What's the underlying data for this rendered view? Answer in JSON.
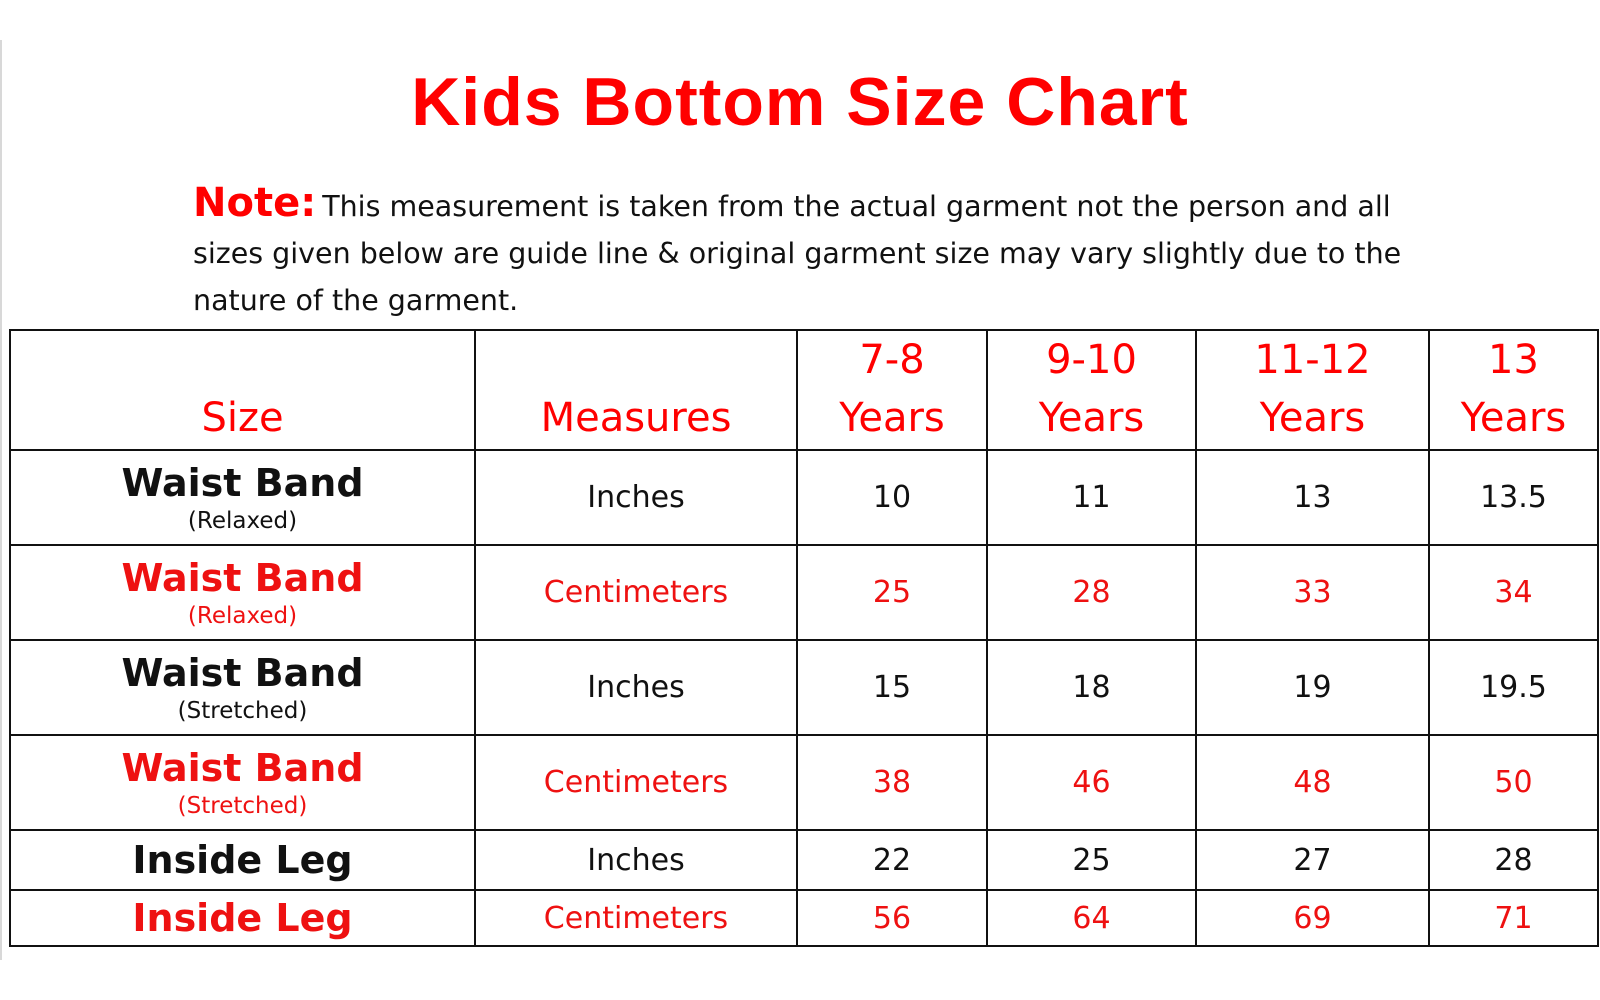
{
  "title": "Kids Bottom Size Chart",
  "note": {
    "label": "Note:",
    "text": "This measurement is taken from the actual garment not the person and all sizes given below are guide line & original garment size may vary slightly due to the nature of the garment."
  },
  "colors": {
    "accent_red": "#ff0000",
    "text_black": "#111111",
    "border": "#111111"
  },
  "table": {
    "headers": {
      "size": "Size",
      "measures": "Measures",
      "age_1_top": "7-8",
      "age_1_bottom": "Years",
      "age_2_top": "9-10",
      "age_2_bottom": "Years",
      "age_3_top": "11-12",
      "age_3_bottom": "Years",
      "age_4_top": "13",
      "age_4_bottom": "Years"
    },
    "rows": [
      {
        "name": "Waist Band",
        "sub": "(Relaxed)",
        "measure": "Inches",
        "values": [
          "10",
          "11",
          "13",
          "13.5"
        ]
      },
      {
        "name": "Waist Band",
        "sub": "(Relaxed)",
        "measure": "Centimeters",
        "values": [
          "25",
          "28",
          "33",
          "34"
        ]
      },
      {
        "name": "Waist Band",
        "sub": "(Stretched)",
        "measure": "Inches",
        "values": [
          "15",
          "18",
          "19",
          "19.5"
        ]
      },
      {
        "name": "Waist Band",
        "sub": "(Stretched)",
        "measure": "Centimeters",
        "values": [
          "38",
          "46",
          "48",
          "50"
        ]
      },
      {
        "name": "Inside Leg",
        "measure": "Inches",
        "values": [
          "22",
          "25",
          "27",
          "28"
        ]
      },
      {
        "name": "Inside Leg",
        "measure": "Centimeters",
        "values": [
          "56",
          "64",
          "69",
          "71"
        ]
      }
    ]
  }
}
